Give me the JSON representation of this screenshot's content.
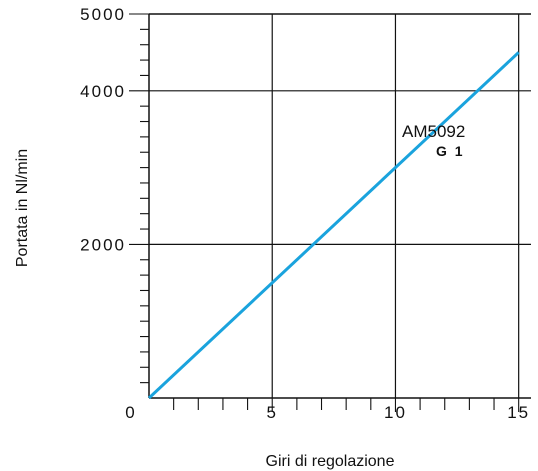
{
  "chart_data": {
    "type": "line",
    "xlabel": "Giri di regolazione",
    "ylabel": "Portata in Nl/min",
    "xlim": [
      0,
      15.5
    ],
    "ylim": [
      0,
      5000
    ],
    "x_ticks": [
      0,
      5,
      10,
      15
    ],
    "x_tick_labels": [
      "0",
      "5",
      "10",
      "15"
    ],
    "y_ticks": [
      2000,
      4000,
      5000
    ],
    "y_tick_labels": [
      "2000",
      "4000",
      "5000"
    ],
    "x_minor_step": 1,
    "y_minor_step": 200,
    "grid": true,
    "line_color": "#1aa3dd",
    "series": [
      {
        "name": "AM5092",
        "model": "G 1",
        "x": [
          0,
          15
        ],
        "y": [
          0,
          4500
        ]
      }
    ]
  }
}
